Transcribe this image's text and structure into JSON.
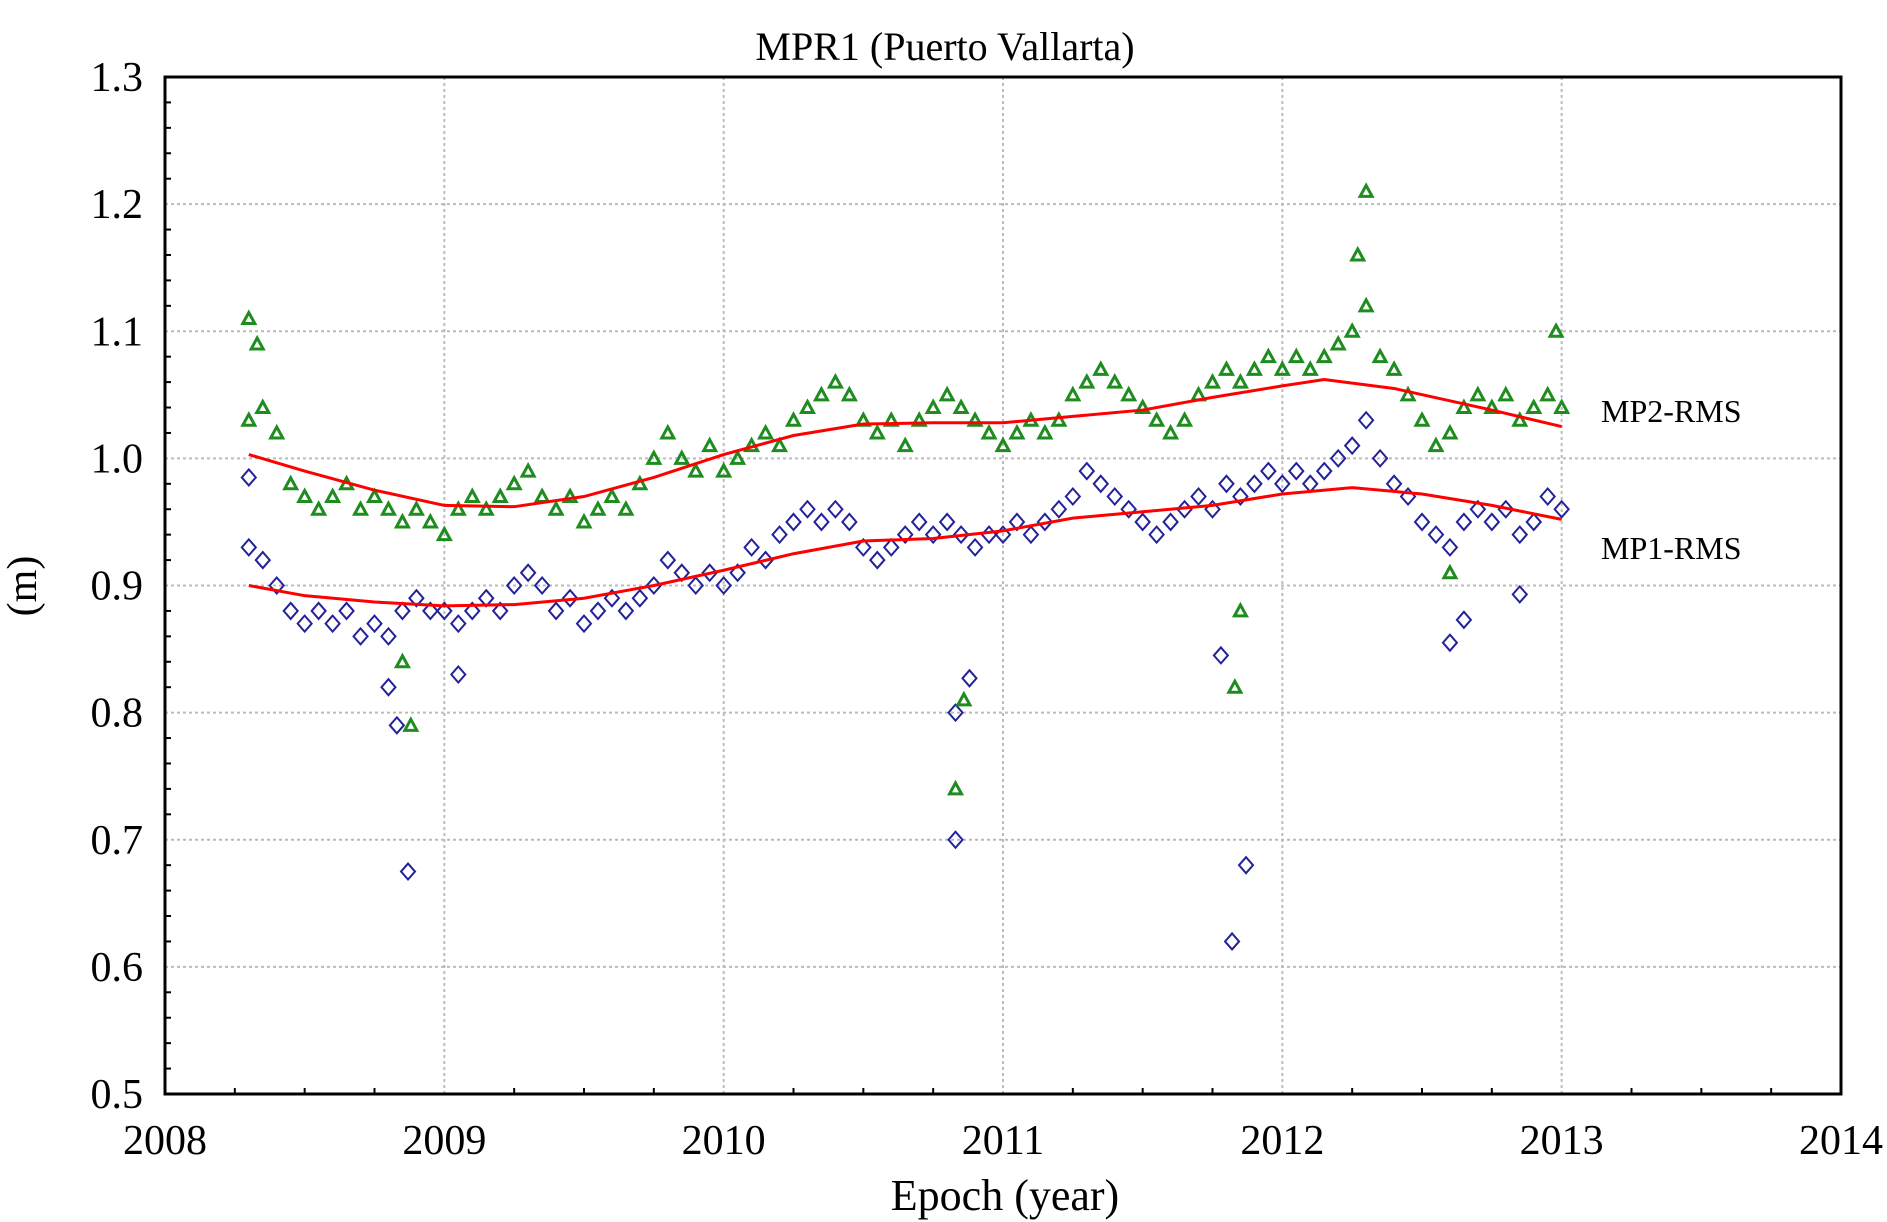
{
  "chart_data": {
    "type": "scatter",
    "title": "MPR1 (Puerto Vallarta)",
    "xlabel": "Epoch (year)",
    "ylabel": "(m)",
    "xlim": [
      2008,
      2014
    ],
    "ylim": [
      0.5,
      1.3
    ],
    "xticks": [
      "2008",
      "2009",
      "2010",
      "2011",
      "2012",
      "2013",
      "2014"
    ],
    "yticks": [
      "0.5",
      "0.6",
      "0.7",
      "0.8",
      "0.9",
      "1.0",
      "1.1",
      "1.2",
      "1.3"
    ],
    "grid": true,
    "colors": {
      "mp2": "#1e8c1e",
      "mp1": "#22229a",
      "trend": "#ff0000"
    },
    "series": [
      {
        "name": "MP2-RMS",
        "marker": "triangle",
        "points": [
          [
            2008.3,
            1.03
          ],
          [
            2008.35,
            1.04
          ],
          [
            2008.4,
            1.02
          ],
          [
            2008.45,
            0.98
          ],
          [
            2008.5,
            0.97
          ],
          [
            2008.55,
            0.96
          ],
          [
            2008.6,
            0.97
          ],
          [
            2008.65,
            0.98
          ],
          [
            2008.7,
            0.96
          ],
          [
            2008.75,
            0.97
          ],
          [
            2008.8,
            0.96
          ],
          [
            2008.85,
            0.95
          ],
          [
            2008.9,
            0.96
          ],
          [
            2008.95,
            0.95
          ],
          [
            2009.0,
            0.94
          ],
          [
            2009.05,
            0.96
          ],
          [
            2009.1,
            0.97
          ],
          [
            2009.15,
            0.96
          ],
          [
            2009.2,
            0.97
          ],
          [
            2009.25,
            0.98
          ],
          [
            2009.3,
            0.99
          ],
          [
            2009.35,
            0.97
          ],
          [
            2009.4,
            0.96
          ],
          [
            2009.45,
            0.97
          ],
          [
            2009.5,
            0.95
          ],
          [
            2009.55,
            0.96
          ],
          [
            2009.6,
            0.97
          ],
          [
            2009.65,
            0.96
          ],
          [
            2009.7,
            0.98
          ],
          [
            2009.75,
            1.0
          ],
          [
            2009.8,
            1.02
          ],
          [
            2009.85,
            1.0
          ],
          [
            2009.9,
            0.99
          ],
          [
            2009.95,
            1.01
          ],
          [
            2010.0,
            0.99
          ],
          [
            2010.05,
            1.0
          ],
          [
            2010.1,
            1.01
          ],
          [
            2010.15,
            1.02
          ],
          [
            2010.2,
            1.01
          ],
          [
            2010.25,
            1.03
          ],
          [
            2010.3,
            1.04
          ],
          [
            2010.35,
            1.05
          ],
          [
            2010.4,
            1.06
          ],
          [
            2010.45,
            1.05
          ],
          [
            2010.5,
            1.03
          ],
          [
            2010.55,
            1.02
          ],
          [
            2010.6,
            1.03
          ],
          [
            2010.65,
            1.01
          ],
          [
            2010.7,
            1.03
          ],
          [
            2010.75,
            1.04
          ],
          [
            2010.8,
            1.05
          ],
          [
            2010.85,
            1.04
          ],
          [
            2010.9,
            1.03
          ],
          [
            2010.95,
            1.02
          ],
          [
            2011.0,
            1.01
          ],
          [
            2011.05,
            1.02
          ],
          [
            2011.1,
            1.03
          ],
          [
            2011.15,
            1.02
          ],
          [
            2011.2,
            1.03
          ],
          [
            2011.25,
            1.05
          ],
          [
            2011.3,
            1.06
          ],
          [
            2011.35,
            1.07
          ],
          [
            2011.4,
            1.06
          ],
          [
            2011.45,
            1.05
          ],
          [
            2011.5,
            1.04
          ],
          [
            2011.55,
            1.03
          ],
          [
            2011.6,
            1.02
          ],
          [
            2011.65,
            1.03
          ],
          [
            2011.7,
            1.05
          ],
          [
            2011.75,
            1.06
          ],
          [
            2011.8,
            1.07
          ],
          [
            2011.85,
            1.06
          ],
          [
            2011.9,
            1.07
          ],
          [
            2011.95,
            1.08
          ],
          [
            2012.0,
            1.07
          ],
          [
            2012.05,
            1.08
          ],
          [
            2012.1,
            1.07
          ],
          [
            2012.15,
            1.08
          ],
          [
            2012.2,
            1.09
          ],
          [
            2012.25,
            1.1
          ],
          [
            2012.3,
            1.12
          ],
          [
            2012.35,
            1.08
          ],
          [
            2012.4,
            1.07
          ],
          [
            2012.45,
            1.05
          ],
          [
            2012.5,
            1.03
          ],
          [
            2012.55,
            1.01
          ],
          [
            2012.6,
            1.02
          ],
          [
            2012.65,
            1.04
          ],
          [
            2012.7,
            1.05
          ],
          [
            2012.75,
            1.04
          ],
          [
            2012.8,
            1.05
          ],
          [
            2012.85,
            1.03
          ],
          [
            2012.9,
            1.04
          ],
          [
            2012.95,
            1.05
          ],
          [
            2013.0,
            1.04
          ],
          [
            2008.3,
            1.11
          ],
          [
            2008.33,
            1.09
          ],
          [
            2008.85,
            0.84
          ],
          [
            2008.88,
            0.79
          ],
          [
            2010.83,
            0.74
          ],
          [
            2010.86,
            0.81
          ],
          [
            2011.83,
            0.82
          ],
          [
            2011.85,
            0.88
          ],
          [
            2012.3,
            1.21
          ],
          [
            2012.27,
            1.16
          ],
          [
            2012.6,
            0.91
          ],
          [
            2012.98,
            1.1
          ]
        ],
        "trend": [
          [
            2008.3,
            1.003
          ],
          [
            2008.5,
            0.99
          ],
          [
            2008.75,
            0.975
          ],
          [
            2009.0,
            0.963
          ],
          [
            2009.25,
            0.962
          ],
          [
            2009.5,
            0.97
          ],
          [
            2009.75,
            0.985
          ],
          [
            2010.0,
            1.003
          ],
          [
            2010.25,
            1.018
          ],
          [
            2010.5,
            1.027
          ],
          [
            2010.75,
            1.028
          ],
          [
            2011.0,
            1.028
          ],
          [
            2011.25,
            1.033
          ],
          [
            2011.5,
            1.038
          ],
          [
            2011.75,
            1.048
          ],
          [
            2012.0,
            1.057
          ],
          [
            2012.15,
            1.062
          ],
          [
            2012.4,
            1.055
          ],
          [
            2012.75,
            1.038
          ],
          [
            2013.0,
            1.025
          ]
        ]
      },
      {
        "name": "MP1-RMS",
        "marker": "diamond",
        "points": [
          [
            2008.3,
            0.93
          ],
          [
            2008.35,
            0.92
          ],
          [
            2008.4,
            0.9
          ],
          [
            2008.45,
            0.88
          ],
          [
            2008.5,
            0.87
          ],
          [
            2008.55,
            0.88
          ],
          [
            2008.6,
            0.87
          ],
          [
            2008.65,
            0.88
          ],
          [
            2008.7,
            0.86
          ],
          [
            2008.75,
            0.87
          ],
          [
            2008.8,
            0.86
          ],
          [
            2008.85,
            0.88
          ],
          [
            2008.9,
            0.89
          ],
          [
            2008.95,
            0.88
          ],
          [
            2009.0,
            0.88
          ],
          [
            2009.05,
            0.87
          ],
          [
            2009.1,
            0.88
          ],
          [
            2009.15,
            0.89
          ],
          [
            2009.2,
            0.88
          ],
          [
            2009.25,
            0.9
          ],
          [
            2009.3,
            0.91
          ],
          [
            2009.35,
            0.9
          ],
          [
            2009.4,
            0.88
          ],
          [
            2009.45,
            0.89
          ],
          [
            2009.5,
            0.87
          ],
          [
            2009.55,
            0.88
          ],
          [
            2009.6,
            0.89
          ],
          [
            2009.65,
            0.88
          ],
          [
            2009.7,
            0.89
          ],
          [
            2009.75,
            0.9
          ],
          [
            2009.8,
            0.92
          ],
          [
            2009.85,
            0.91
          ],
          [
            2009.9,
            0.9
          ],
          [
            2009.95,
            0.91
          ],
          [
            2010.0,
            0.9
          ],
          [
            2010.05,
            0.91
          ],
          [
            2010.1,
            0.93
          ],
          [
            2010.15,
            0.92
          ],
          [
            2010.2,
            0.94
          ],
          [
            2010.25,
            0.95
          ],
          [
            2010.3,
            0.96
          ],
          [
            2010.35,
            0.95
          ],
          [
            2010.4,
            0.96
          ],
          [
            2010.45,
            0.95
          ],
          [
            2010.5,
            0.93
          ],
          [
            2010.55,
            0.92
          ],
          [
            2010.6,
            0.93
          ],
          [
            2010.65,
            0.94
          ],
          [
            2010.7,
            0.95
          ],
          [
            2010.75,
            0.94
          ],
          [
            2010.8,
            0.95
          ],
          [
            2010.85,
            0.94
          ],
          [
            2010.9,
            0.93
          ],
          [
            2010.95,
            0.94
          ],
          [
            2011.0,
            0.94
          ],
          [
            2011.05,
            0.95
          ],
          [
            2011.1,
            0.94
          ],
          [
            2011.15,
            0.95
          ],
          [
            2011.2,
            0.96
          ],
          [
            2011.25,
            0.97
          ],
          [
            2011.3,
            0.99
          ],
          [
            2011.35,
            0.98
          ],
          [
            2011.4,
            0.97
          ],
          [
            2011.45,
            0.96
          ],
          [
            2011.5,
            0.95
          ],
          [
            2011.55,
            0.94
          ],
          [
            2011.6,
            0.95
          ],
          [
            2011.65,
            0.96
          ],
          [
            2011.7,
            0.97
          ],
          [
            2011.75,
            0.96
          ],
          [
            2011.8,
            0.98
          ],
          [
            2011.85,
            0.97
          ],
          [
            2011.9,
            0.98
          ],
          [
            2011.95,
            0.99
          ],
          [
            2012.0,
            0.98
          ],
          [
            2012.05,
            0.99
          ],
          [
            2012.1,
            0.98
          ],
          [
            2012.15,
            0.99
          ],
          [
            2012.2,
            1.0
          ],
          [
            2012.25,
            1.01
          ],
          [
            2012.3,
            1.03
          ],
          [
            2012.35,
            1.0
          ],
          [
            2012.4,
            0.98
          ],
          [
            2012.45,
            0.97
          ],
          [
            2012.5,
            0.95
          ],
          [
            2012.55,
            0.94
          ],
          [
            2012.6,
            0.93
          ],
          [
            2012.65,
            0.95
          ],
          [
            2012.7,
            0.96
          ],
          [
            2012.75,
            0.95
          ],
          [
            2012.8,
            0.96
          ],
          [
            2012.85,
            0.94
          ],
          [
            2012.9,
            0.95
          ],
          [
            2012.95,
            0.97
          ],
          [
            2013.0,
            0.96
          ],
          [
            2008.87,
            0.675
          ],
          [
            2008.83,
            0.79
          ],
          [
            2008.8,
            0.82
          ],
          [
            2010.83,
            0.7
          ],
          [
            2010.83,
            0.8
          ],
          [
            2010.88,
            0.827
          ],
          [
            2011.82,
            0.62
          ],
          [
            2011.87,
            0.68
          ],
          [
            2011.78,
            0.845
          ],
          [
            2012.6,
            0.855
          ],
          [
            2012.65,
            0.873
          ],
          [
            2012.85,
            0.893
          ],
          [
            2009.05,
            0.83
          ],
          [
            2008.3,
            0.985
          ]
        ],
        "trend": [
          [
            2008.3,
            0.9
          ],
          [
            2008.5,
            0.892
          ],
          [
            2008.75,
            0.887
          ],
          [
            2009.0,
            0.884
          ],
          [
            2009.25,
            0.885
          ],
          [
            2009.5,
            0.89
          ],
          [
            2009.75,
            0.9
          ],
          [
            2010.0,
            0.912
          ],
          [
            2010.25,
            0.925
          ],
          [
            2010.5,
            0.935
          ],
          [
            2010.75,
            0.937
          ],
          [
            2011.0,
            0.943
          ],
          [
            2011.25,
            0.953
          ],
          [
            2011.5,
            0.958
          ],
          [
            2011.75,
            0.963
          ],
          [
            2012.0,
            0.972
          ],
          [
            2012.25,
            0.977
          ],
          [
            2012.5,
            0.972
          ],
          [
            2012.75,
            0.963
          ],
          [
            2013.0,
            0.952
          ]
        ]
      }
    ]
  }
}
